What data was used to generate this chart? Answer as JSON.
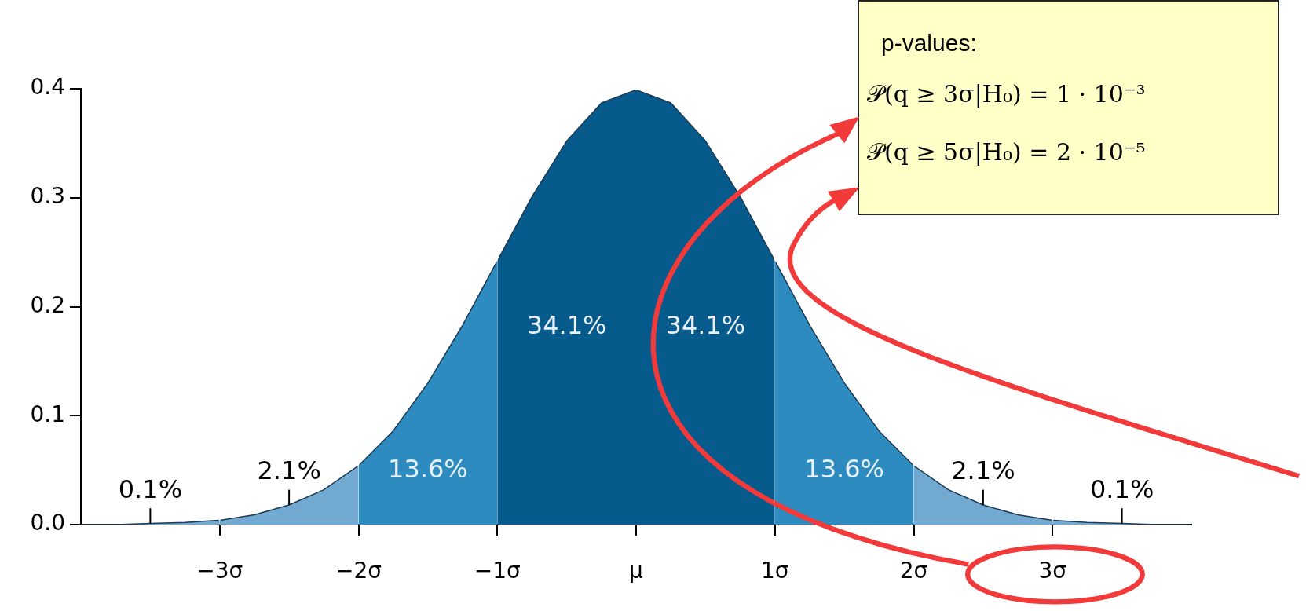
{
  "chart_data": {
    "type": "area",
    "xlim": [
      -4,
      4
    ],
    "ylim": [
      0,
      0.4
    ],
    "xticks": [
      {
        "value": -3,
        "label": "−3σ"
      },
      {
        "value": -2,
        "label": "−2σ"
      },
      {
        "value": -1,
        "label": "−1σ"
      },
      {
        "value": 0,
        "label": "μ"
      },
      {
        "value": 1,
        "label": "1σ"
      },
      {
        "value": 2,
        "label": "2σ"
      },
      {
        "value": 3,
        "label": "3σ"
      }
    ],
    "yticks": [
      {
        "value": 0,
        "label": "0.0"
      },
      {
        "value": 0.1,
        "label": "0.1"
      },
      {
        "value": 0.2,
        "label": "0.2"
      },
      {
        "value": 0.3,
        "label": "0.3"
      },
      {
        "value": 0.4,
        "label": "0.4"
      }
    ],
    "grid": false,
    "legend": false,
    "marker": "none",
    "series": [
      {
        "name": "0.1%",
        "color": "#72a9d0",
        "x": [
          -4,
          -3.75,
          -3.5,
          -3.25,
          -3
        ],
        "values": [
          0.0,
          0.0,
          0.001,
          0.002,
          0.004
        ]
      },
      {
        "name": "2.1%",
        "color": "#72a9d0",
        "x": [
          -3,
          -2.75,
          -2.5,
          -2.25,
          -2
        ],
        "values": [
          0.004,
          0.009,
          0.018,
          0.032,
          0.054
        ]
      },
      {
        "name": "13.6%",
        "color": "#2e8bc0",
        "x": [
          -2,
          -1.75,
          -1.5,
          -1.25,
          -1
        ],
        "values": [
          0.054,
          0.086,
          0.13,
          0.183,
          0.242
        ]
      },
      {
        "name": "34.1%",
        "color": "#065a8c",
        "x": [
          -1,
          -0.75,
          -0.5,
          -0.25,
          0
        ],
        "values": [
          0.242,
          0.301,
          0.352,
          0.387,
          0.399
        ]
      },
      {
        "name": "34.1%",
        "color": "#065a8c",
        "x": [
          0,
          0.25,
          0.5,
          0.75,
          1
        ],
        "values": [
          0.399,
          0.387,
          0.352,
          0.301,
          0.242
        ]
      },
      {
        "name": "13.6%",
        "color": "#2e8bc0",
        "x": [
          1,
          1.25,
          1.5,
          1.75,
          2
        ],
        "values": [
          0.242,
          0.183,
          0.13,
          0.086,
          0.054
        ]
      },
      {
        "name": "2.1%",
        "color": "#72a9d0",
        "x": [
          2,
          2.25,
          2.5,
          2.75,
          3
        ],
        "values": [
          0.054,
          0.032,
          0.018,
          0.009,
          0.004
        ]
      },
      {
        "name": "0.1%",
        "color": "#72a9d0",
        "x": [
          3,
          3.25,
          3.5,
          3.75,
          4
        ],
        "values": [
          0.004,
          0.002,
          0.001,
          0.0,
          0.0
        ]
      }
    ],
    "annotations": [
      "p-values:",
      "𝒫(q ≥ 3σ|H₀) = 1 · 10⁻³",
      "𝒫(q ≥ 5σ|H₀) = 2 · 10⁻⁵"
    ]
  }
}
